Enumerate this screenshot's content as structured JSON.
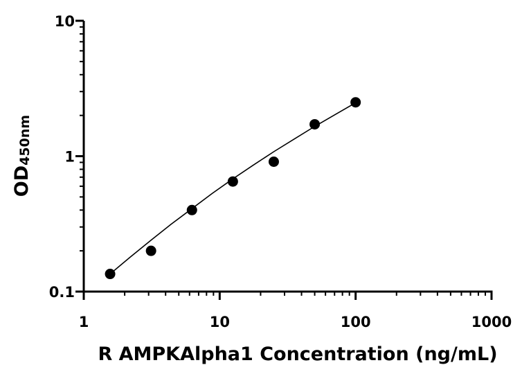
{
  "chart_data": {
    "type": "scatter",
    "title": "",
    "xlabel": "R AMPKAlpha1 Concentration (ng/mL)",
    "ylabel_main": "OD",
    "ylabel_sub": "450nm",
    "xscale": "log",
    "yscale": "log",
    "xlim": [
      1,
      1000
    ],
    "ylim": [
      0.1,
      10
    ],
    "x_ticks": [
      1,
      10,
      100,
      1000
    ],
    "x_tick_labels": [
      "1",
      "10",
      "100",
      "1000"
    ],
    "y_ticks": [
      0.1,
      1,
      10
    ],
    "y_tick_labels": [
      "0.1",
      "1",
      "10"
    ],
    "grid": false,
    "legend": "none",
    "series": [
      {
        "points": [
          {
            "x": 1.5625,
            "y": 0.135
          },
          {
            "x": 3.125,
            "y": 0.2
          },
          {
            "x": 6.25,
            "y": 0.4
          },
          {
            "x": 12.5,
            "y": 0.65
          },
          {
            "x": 25,
            "y": 0.91
          },
          {
            "x": 50,
            "y": 1.72
          },
          {
            "x": 100,
            "y": 2.5
          }
        ],
        "fit_curve": [
          {
            "x": 1.5625,
            "y": 0.135
          },
          {
            "x": 2.2,
            "y": 0.18
          },
          {
            "x": 3.125,
            "y": 0.24
          },
          {
            "x": 4.4,
            "y": 0.315
          },
          {
            "x": 6.25,
            "y": 0.41
          },
          {
            "x": 8.8,
            "y": 0.53
          },
          {
            "x": 12.5,
            "y": 0.68
          },
          {
            "x": 17.7,
            "y": 0.86
          },
          {
            "x": 25,
            "y": 1.08
          },
          {
            "x": 35.4,
            "y": 1.34
          },
          {
            "x": 50,
            "y": 1.66
          },
          {
            "x": 70.7,
            "y": 2.03
          },
          {
            "x": 100,
            "y": 2.48
          }
        ]
      }
    ],
    "colors": {
      "marker": "#000000",
      "line": "#000000",
      "axis": "#000000"
    }
  }
}
